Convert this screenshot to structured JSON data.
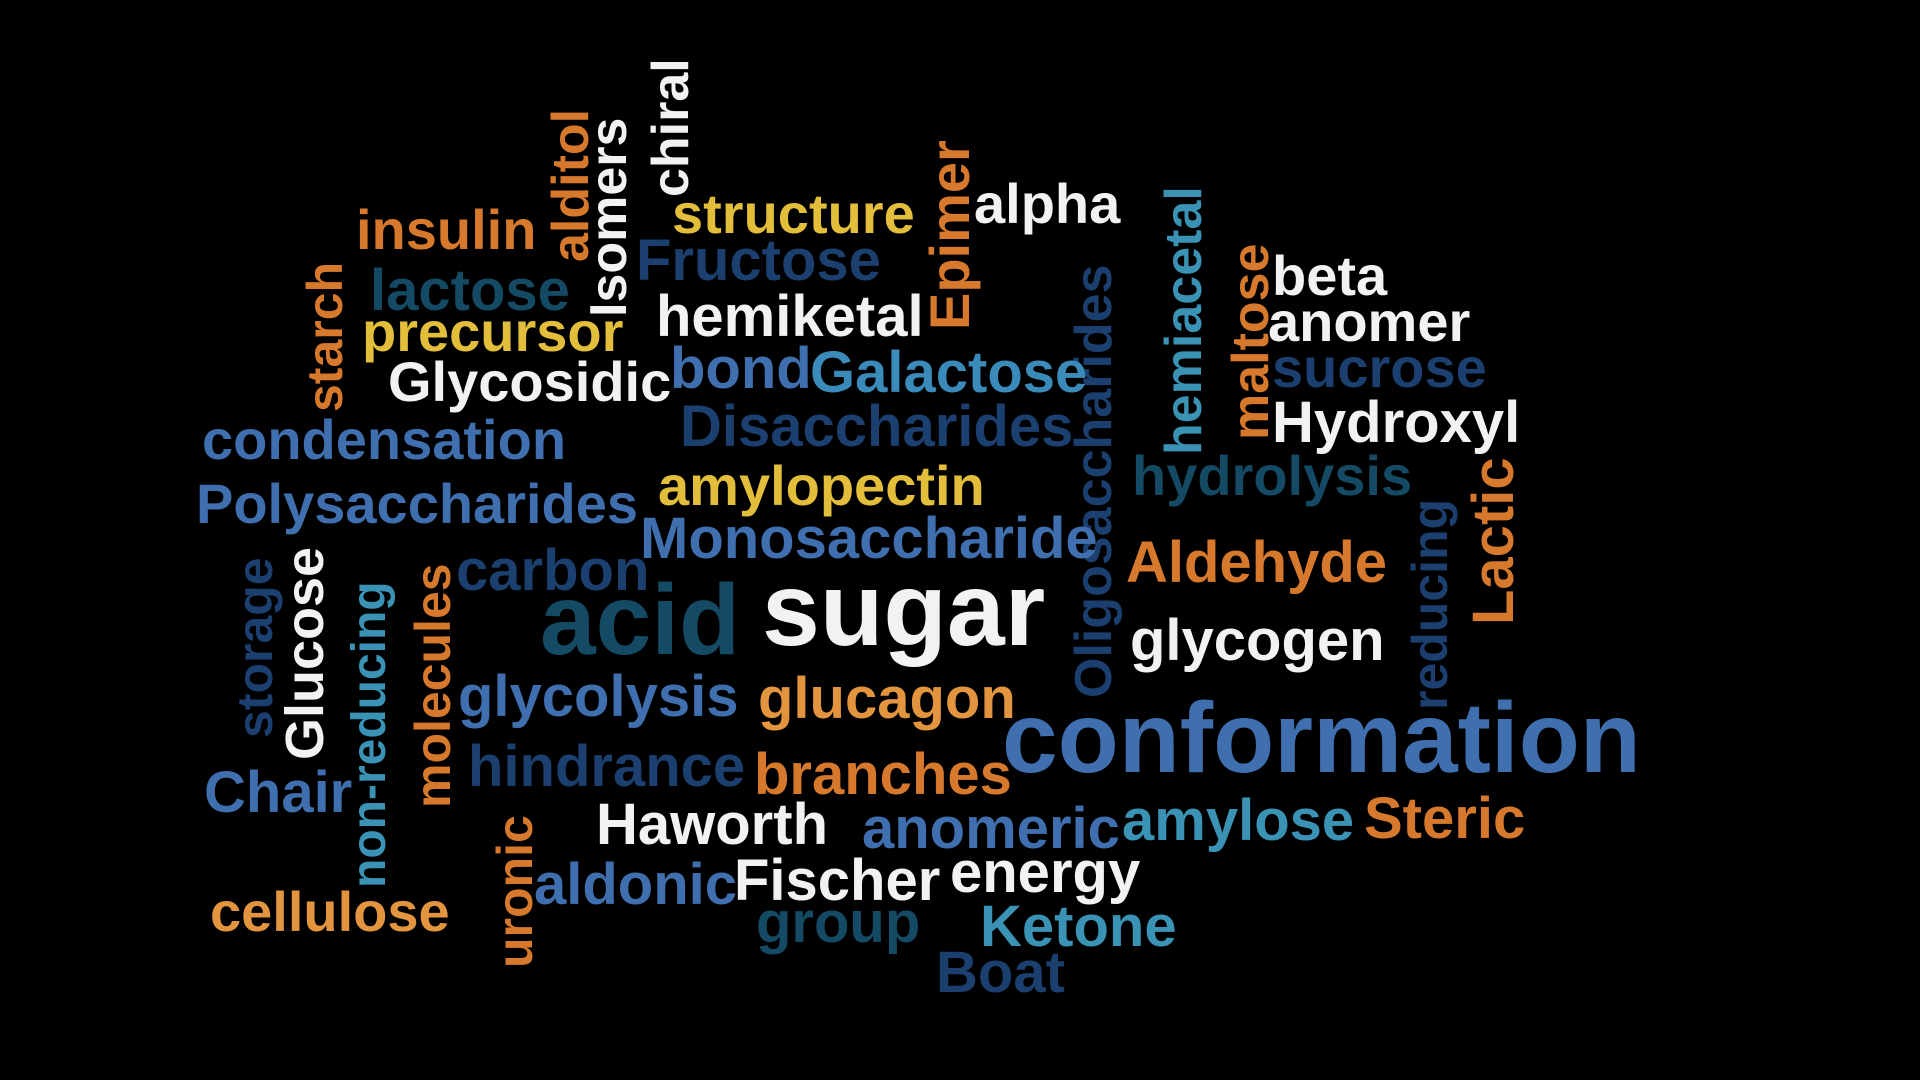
{
  "palette": {
    "white": "#F2F2F2",
    "yellow": "#E3BE3A",
    "orange": "#D7792C",
    "light_orange": "#E2953E",
    "mid_blue": "#3F6FAE",
    "light_blue": "#3B8BBA",
    "teal": "#3A93B5",
    "navy": "#1B3F6E",
    "dark_teal": "#154A64"
  },
  "words": {
    "chiral": "chiral",
    "isomers": "Isomers",
    "alditol": "alditol",
    "insulin": "insulin",
    "structure": "structure",
    "epimer": "Epimer",
    "alpha": "alpha",
    "hemiacetal": "hemiacetal",
    "maltose": "maltose",
    "beta": "beta",
    "starch": "starch",
    "lactose": "lactose",
    "fructose": "Fructose",
    "hemiketal": "hemiketal",
    "anomer": "anomer",
    "precursor": "precursor",
    "oligosaccharides": "Oligosaccharides",
    "sucrose": "sucrose",
    "glycosidic": "Glycosidic",
    "bond": "bond",
    "galactose": "Galactose",
    "hydroxyl": "Hydroxyl",
    "condensation": "condensation",
    "disaccharides": "Disaccharides",
    "amylopectin": "amylopectin",
    "hydrolysis": "hydrolysis",
    "polysaccharides": "Polysaccharides",
    "lactic": "Lactic",
    "reducing": "reducing",
    "monosaccharide": "Monosaccharide",
    "storage": "storage",
    "glucose": "Glucose",
    "non_reducing": "non-reducing",
    "molecules": "molecules",
    "carbon": "carbon",
    "aldehyde": "Aldehyde",
    "acid": "acid",
    "sugar": "sugar",
    "glycogen": "glycogen",
    "glycolysis": "glycolysis",
    "glucagon": "glucagon",
    "conformation": "conformation",
    "chair": "Chair",
    "hindrance": "hindrance",
    "branches": "branches",
    "haworth": "Haworth",
    "anomeric": "anomeric",
    "amylose": "amylose",
    "steric": "Steric",
    "uronic": "uronic",
    "aldonic": "aldonic",
    "fischer": "Fischer",
    "energy": "energy",
    "cellulose": "cellulose",
    "group": "group",
    "ketone": "Ketone",
    "boat": "Boat"
  }
}
